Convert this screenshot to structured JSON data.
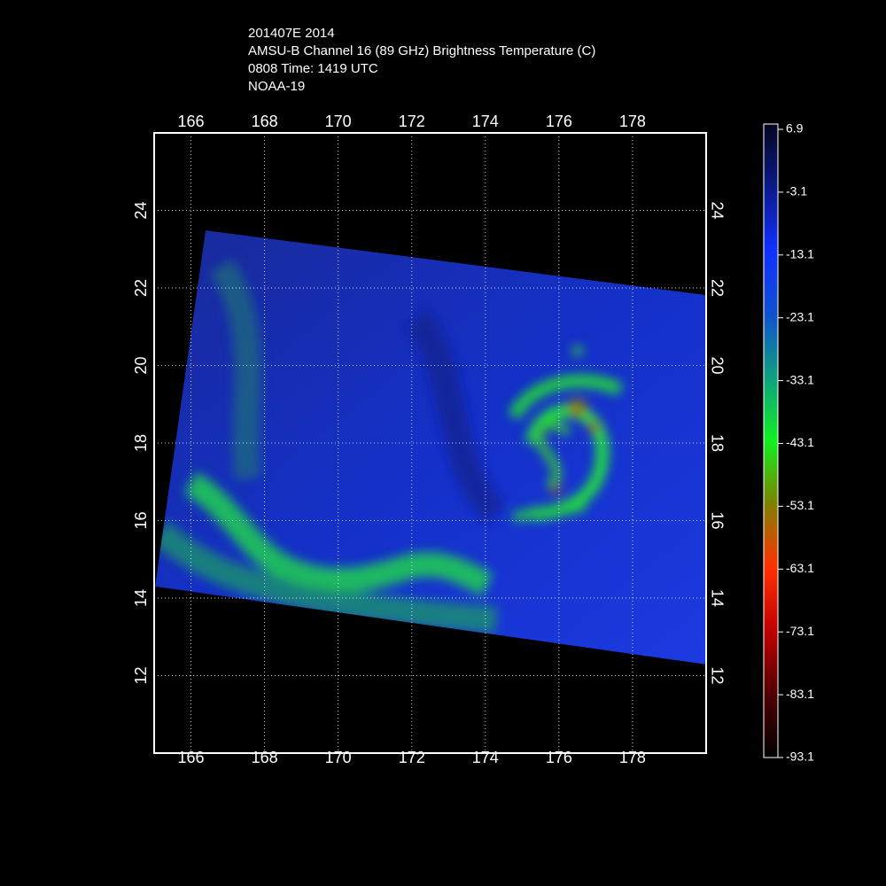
{
  "header": {
    "lines": [
      "201407E 2014",
      "AMSU-B Channel 16 (89 GHz) Brightness Temperature (C)",
      "0808 Time: 1419 UTC",
      "NOAA-19"
    ]
  },
  "map": {
    "xlim": [
      165,
      180
    ],
    "ylim": [
      10,
      26
    ],
    "xticks": [
      166,
      168,
      170,
      172,
      174,
      176,
      178
    ],
    "yticks": [
      12,
      14,
      16,
      18,
      20,
      22,
      24
    ]
  },
  "colorbar": {
    "clim": [
      -93.1,
      6.9
    ],
    "ticks": [
      6.9,
      -3.1,
      -13.1,
      -23.1,
      -33.1,
      -43.1,
      -53.1,
      -63.1,
      -73.1,
      -83.1,
      -93.1
    ]
  }
}
